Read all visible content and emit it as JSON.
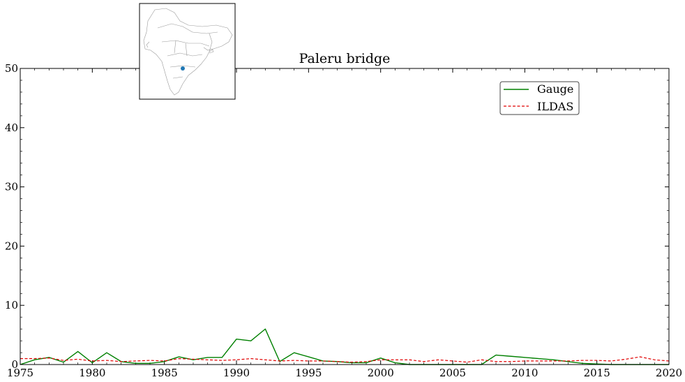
{
  "chart_data": {
    "type": "line",
    "title": "Paleru bridge",
    "xlabel": "",
    "ylabel": "",
    "xlim": [
      1975,
      2020
    ],
    "ylim": [
      0,
      50
    ],
    "x_ticks": [
      1975,
      1980,
      1985,
      1990,
      1995,
      2000,
      2005,
      2010,
      2015,
      2020
    ],
    "y_ticks": [
      0,
      10,
      20,
      30,
      40,
      50
    ],
    "grid": false,
    "legend_position": "top-right",
    "series": [
      {
        "name": "Gauge",
        "color": "#008000",
        "style": "solid",
        "x": [
          1975,
          1976,
          1977,
          1978,
          1979,
          1980,
          1981,
          1982,
          1983,
          1984,
          1985,
          1986,
          1987,
          1988,
          1989,
          1990,
          1991,
          1992,
          1993,
          1994,
          1995,
          1996,
          1997,
          1998,
          1999,
          2000,
          2001,
          2002,
          2003,
          2004,
          2005,
          2006,
          2007,
          2008,
          2009,
          2010,
          2011,
          2012,
          2013,
          2014,
          2015,
          2016,
          2017,
          2018,
          2019,
          2020
        ],
        "values": [
          0.0,
          0.8,
          1.2,
          0.4,
          2.2,
          0.3,
          2.0,
          0.5,
          0.2,
          0.2,
          0.5,
          1.3,
          0.8,
          1.2,
          1.2,
          4.3,
          4.0,
          6.0,
          0.5,
          2.0,
          1.3,
          0.6,
          0.5,
          0.3,
          0.3,
          1.1,
          0.3,
          0.0,
          0.0,
          0.0,
          0.0,
          0.0,
          0.0,
          1.6,
          1.4,
          1.2,
          1.0,
          0.8,
          0.5,
          0.2,
          0.1,
          0.0,
          0.0,
          0.0,
          0.0,
          0.0
        ]
      },
      {
        "name": "ILDAS",
        "color": "#e00000",
        "style": "dashed",
        "x": [
          1975,
          1976,
          1977,
          1978,
          1979,
          1980,
          1981,
          1982,
          1983,
          1984,
          1985,
          1986,
          1987,
          1988,
          1989,
          1990,
          1991,
          1992,
          1993,
          1994,
          1995,
          1996,
          1997,
          1998,
          1999,
          2000,
          2001,
          2002,
          2003,
          2004,
          2005,
          2006,
          2007,
          2008,
          2009,
          2010,
          2011,
          2012,
          2013,
          2014,
          2015,
          2016,
          2017,
          2018,
          2019,
          2020
        ],
        "values": [
          1.0,
          1.0,
          1.1,
          0.7,
          0.9,
          0.6,
          0.7,
          0.5,
          0.6,
          0.7,
          0.6,
          1.0,
          0.9,
          0.8,
          0.7,
          0.8,
          1.0,
          0.8,
          0.6,
          0.7,
          0.6,
          0.6,
          0.5,
          0.4,
          0.5,
          0.8,
          0.8,
          0.8,
          0.5,
          0.8,
          0.6,
          0.4,
          0.8,
          0.5,
          0.5,
          0.6,
          0.6,
          0.6,
          0.6,
          0.7,
          0.7,
          0.6,
          0.9,
          1.3,
          0.8,
          0.6
        ]
      }
    ]
  },
  "inset_map": {
    "region": "South Asia outline",
    "marker_color": "#1f77b4",
    "outline_color": "#888888"
  }
}
